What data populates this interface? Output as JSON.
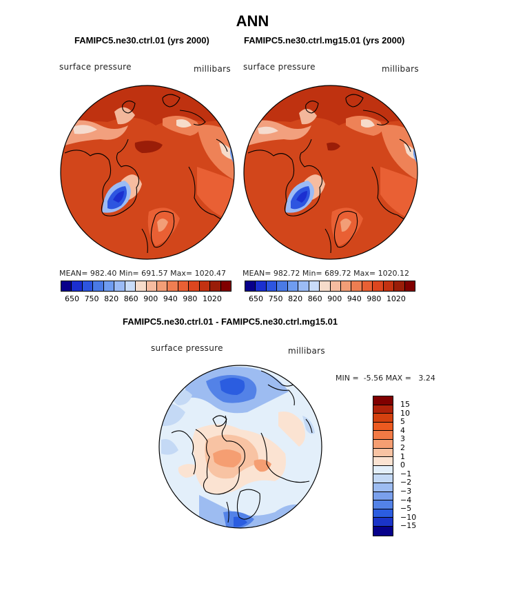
{
  "title": "ANN",
  "left_panel": {
    "case": "FAMIPC5.ne30.ctrl.01 (yrs 2000)",
    "variable": "surface pressure",
    "units": "millibars",
    "stats": "MEAN= 982.40   Min= 691.57   Max= 1020.47"
  },
  "right_panel": {
    "case": "FAMIPC5.ne30.ctrl.mg15.01 (yrs 2000)",
    "variable": "surface pressure",
    "units": "millibars",
    "stats": "MEAN= 982.72   Min= 689.72   Max= 1020.12"
  },
  "top_colorbar": {
    "colors": [
      "#08008a",
      "#1b2fd0",
      "#2d55e0",
      "#4a7ae6",
      "#6f9cf0",
      "#9bbbf5",
      "#c9dcf8",
      "#f6dccb",
      "#f6bca0",
      "#f29e77",
      "#ee7e52",
      "#e96034",
      "#dc461f",
      "#c33211",
      "#9a1d08",
      "#800000"
    ],
    "ticks": [
      "650",
      "750",
      "820",
      "860",
      "900",
      "940",
      "980",
      "1020"
    ]
  },
  "diff_panel": {
    "title": "FAMIPC5.ne30.ctrl.01 - FAMIPC5.ne30.ctrl.mg15.01",
    "variable": "surface pressure",
    "units": "millibars",
    "min_label": "MIN =",
    "min_value": "-5.56",
    "max_label": "MAX =",
    "max_value": "3.24"
  },
  "diff_colorbar": {
    "colors": [
      "#800000",
      "#b0220a",
      "#d4410f",
      "#ec5a20",
      "#f27a45",
      "#f59e72",
      "#f8c3a3",
      "#fbe3d2",
      "#e3effa",
      "#c4d9f5",
      "#9dbcf1",
      "#7aa0ec",
      "#5382e7",
      "#2b5de0",
      "#1a34c8",
      "#06018a"
    ],
    "labels": [
      "15",
      "10",
      "5",
      "4",
      "3",
      "2",
      "1",
      "0",
      "−1",
      "−2",
      "−3",
      "−4",
      "−5",
      "−10",
      "−15"
    ]
  }
}
